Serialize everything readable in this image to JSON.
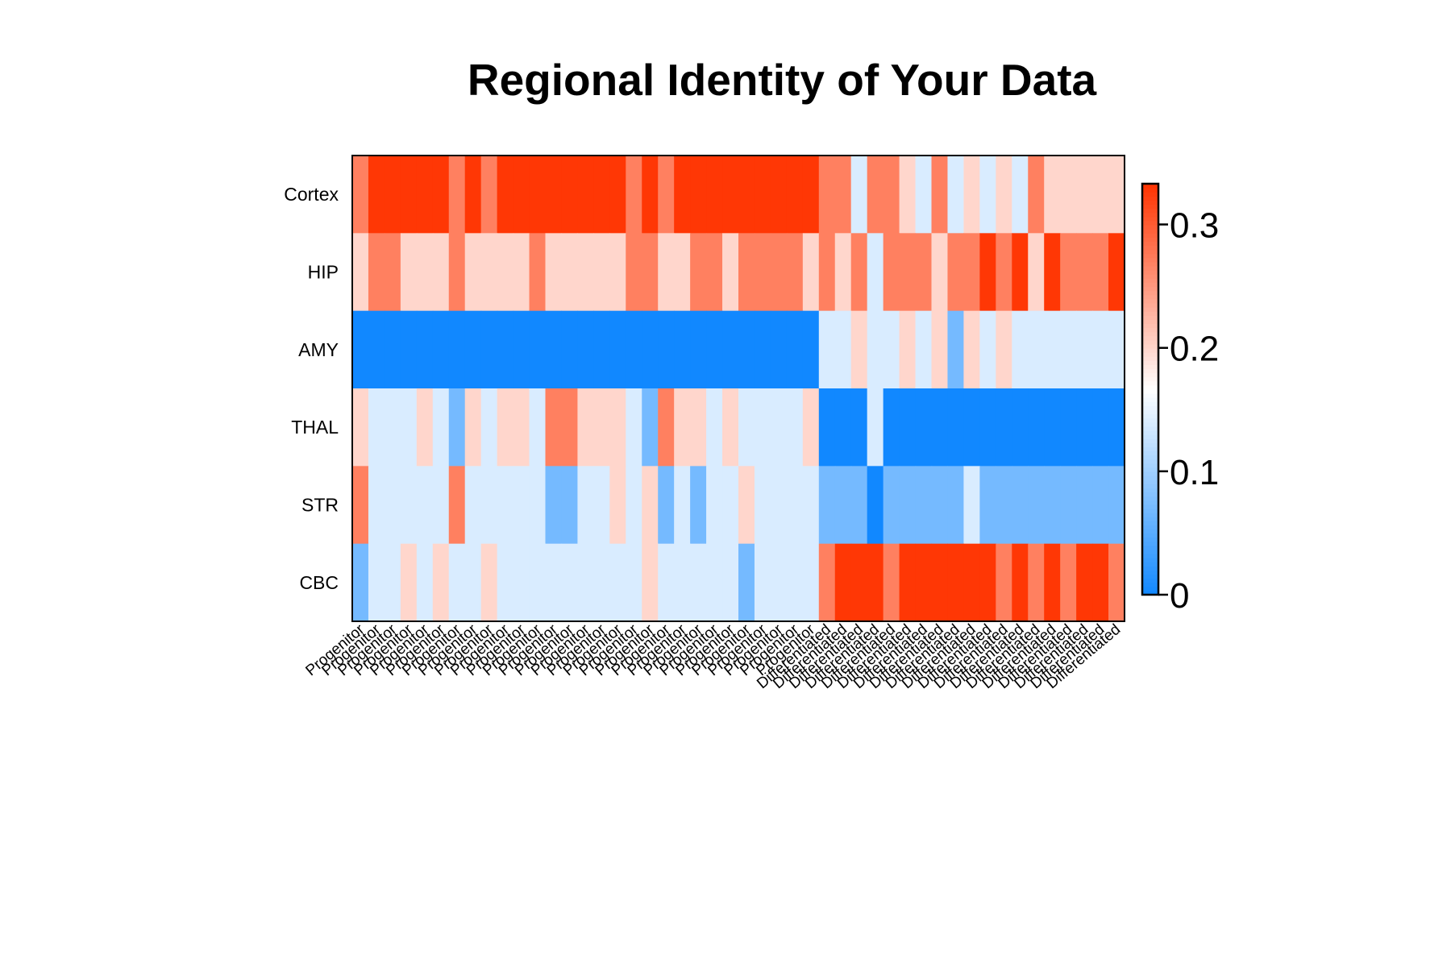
{
  "chart_data": {
    "type": "heatmap",
    "title": "Regional Identity of Your Data",
    "rows": [
      "Cortex",
      "HIP",
      "AMY",
      "THAL",
      "STR",
      "CBC"
    ],
    "columns": [
      "Progenitor",
      "Progenitor",
      "Progenitor",
      "Progenitor",
      "Progenitor",
      "Progenitor",
      "Progenitor",
      "Progenitor",
      "Progenitor",
      "Progenitor",
      "Progenitor",
      "Progenitor",
      "Progenitor",
      "Progenitor",
      "Progenitor",
      "Progenitor",
      "Progenitor",
      "Progenitor",
      "Progenitor",
      "Progenitor",
      "Progenitor",
      "Progenitor",
      "Progenitor",
      "Progenitor",
      "Progenitor",
      "Progenitor",
      "Progenitor",
      "Progenitor",
      "Progenitor",
      "Differentiated",
      "Differentiated",
      "Differentiated",
      "Differentiated",
      "Differentiated",
      "Differentiated",
      "Differentiated",
      "Differentiated",
      "Differentiated",
      "Differentiated",
      "Differentiated",
      "Differentiated",
      "Differentiated",
      "Differentiated",
      "Differentiated",
      "Differentiated",
      "Differentiated",
      "Differentiated",
      "Differentiated"
    ],
    "values": [
      [
        0.27,
        0.33,
        0.33,
        0.33,
        0.33,
        0.33,
        0.27,
        0.33,
        0.27,
        0.33,
        0.33,
        0.33,
        0.33,
        0.33,
        0.33,
        0.33,
        0.33,
        0.27,
        0.33,
        0.27,
        0.33,
        0.33,
        0.33,
        0.33,
        0.33,
        0.33,
        0.33,
        0.33,
        0.33,
        0.27,
        0.27,
        0.14,
        0.27,
        0.27,
        0.2,
        0.14,
        0.27,
        0.14,
        0.2,
        0.14,
        0.2,
        0.14,
        0.27,
        0.2,
        0.2,
        0.2,
        0.2,
        0.2
      ],
      [
        0.2,
        0.27,
        0.27,
        0.2,
        0.2,
        0.2,
        0.27,
        0.2,
        0.2,
        0.2,
        0.2,
        0.27,
        0.2,
        0.2,
        0.2,
        0.2,
        0.2,
        0.27,
        0.27,
        0.2,
        0.2,
        0.27,
        0.27,
        0.2,
        0.27,
        0.27,
        0.27,
        0.27,
        0.2,
        0.27,
        0.2,
        0.27,
        0.14,
        0.27,
        0.27,
        0.27,
        0.2,
        0.27,
        0.27,
        0.33,
        0.27,
        0.33,
        0.2,
        0.33,
        0.27,
        0.27,
        0.27,
        0.33
      ],
      [
        0,
        0,
        0,
        0,
        0,
        0,
        0,
        0,
        0,
        0,
        0,
        0,
        0,
        0,
        0,
        0,
        0,
        0,
        0,
        0,
        0,
        0,
        0,
        0,
        0,
        0,
        0,
        0,
        0,
        0.14,
        0.14,
        0.2,
        0.14,
        0.14,
        0.2,
        0.14,
        0.2,
        0.07,
        0.2,
        0.14,
        0.2,
        0.14,
        0.14,
        0.14,
        0.14,
        0.14,
        0.14,
        0.14
      ],
      [
        0.2,
        0.14,
        0.14,
        0.14,
        0.2,
        0.14,
        0.07,
        0.2,
        0.14,
        0.2,
        0.2,
        0.14,
        0.27,
        0.27,
        0.2,
        0.2,
        0.2,
        0.14,
        0.07,
        0.27,
        0.2,
        0.2,
        0.14,
        0.2,
        0.14,
        0.14,
        0.14,
        0.14,
        0.2,
        0,
        0,
        0,
        0.14,
        0,
        0,
        0,
        0,
        0,
        0,
        0,
        0,
        0,
        0,
        0,
        0,
        0,
        0,
        0
      ],
      [
        0.27,
        0.14,
        0.14,
        0.14,
        0.14,
        0.14,
        0.27,
        0.14,
        0.14,
        0.14,
        0.14,
        0.14,
        0.07,
        0.07,
        0.14,
        0.14,
        0.2,
        0.14,
        0.2,
        0.07,
        0.14,
        0.07,
        0.14,
        0.14,
        0.2,
        0.14,
        0.14,
        0.14,
        0.14,
        0.07,
        0.07,
        0.07,
        0,
        0.07,
        0.07,
        0.07,
        0.07,
        0.07,
        0.14,
        0.07,
        0.07,
        0.07,
        0.07,
        0.07,
        0.07,
        0.07,
        0.07,
        0.07
      ],
      [
        0.07,
        0.14,
        0.14,
        0.2,
        0.14,
        0.2,
        0.14,
        0.14,
        0.2,
        0.14,
        0.14,
        0.14,
        0.14,
        0.14,
        0.14,
        0.14,
        0.14,
        0.14,
        0.2,
        0.14,
        0.14,
        0.14,
        0.14,
        0.14,
        0.07,
        0.14,
        0.14,
        0.14,
        0.14,
        0.27,
        0.33,
        0.33,
        0.33,
        0.27,
        0.33,
        0.33,
        0.33,
        0.33,
        0.33,
        0.33,
        0.27,
        0.33,
        0.27,
        0.33,
        0.27,
        0.33,
        0.33,
        0.27
      ]
    ],
    "colorbar": {
      "min": 0,
      "max": 0.333,
      "ticks": [
        0,
        0.1,
        0.2,
        0.3
      ],
      "tick_labels": [
        "0",
        "0.1",
        "0.2",
        "0.3"
      ],
      "low_color": "#1188ff",
      "mid_color": "#ffffff",
      "high_color": "#ff3300"
    }
  }
}
